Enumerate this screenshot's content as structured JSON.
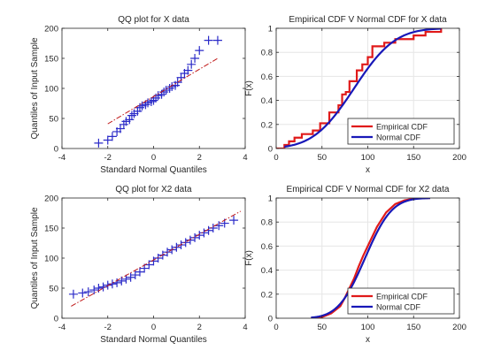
{
  "colors": {
    "marker": "#2b2bc8",
    "ref_line": "#c01818",
    "empirical": "#e01a1a",
    "normal": "#1818b8",
    "axis": "#262626",
    "grid": "#e6e6e6"
  },
  "chart_data": [
    {
      "type": "scatter",
      "title": "QQ plot for X data",
      "xlabel": "Standard Normal Quantiles",
      "ylabel": "Quantiles of Input Sample",
      "xlim": [
        -4,
        4
      ],
      "ylim": [
        0,
        200
      ],
      "xticks": [
        -4,
        -2,
        0,
        2,
        4
      ],
      "yticks": [
        0,
        50,
        100,
        150,
        200
      ],
      "grid": false,
      "series": [
        {
          "kind": "markers",
          "marker": "+",
          "x": [
            -2.4,
            -2.0,
            -1.8,
            -1.6,
            -1.45,
            -1.3,
            -1.2,
            -1.05,
            -0.95,
            -0.85,
            -0.7,
            -0.6,
            -0.5,
            -0.35,
            -0.25,
            -0.1,
            0.0,
            0.1,
            0.2,
            0.35,
            0.45,
            0.55,
            0.7,
            0.8,
            0.95,
            1.05,
            1.2,
            1.35,
            1.5,
            1.65,
            1.8,
            2.0,
            2.4,
            2.8
          ],
          "values": [
            9,
            14,
            20,
            28,
            33,
            40,
            45,
            48,
            55,
            58,
            62,
            68,
            71,
            73,
            76,
            78,
            80,
            84,
            88,
            90,
            94,
            97,
            100,
            103,
            105,
            110,
            118,
            125,
            130,
            140,
            150,
            163,
            180,
            180
          ]
        },
        {
          "kind": "reference-line",
          "x": [
            -2.0,
            2.8
          ],
          "values": [
            41,
            150
          ]
        }
      ]
    },
    {
      "type": "line",
      "title": "Empirical CDF V Normal CDF for X data",
      "xlabel": "x",
      "ylabel": "F(x)",
      "xlim": [
        0,
        200
      ],
      "ylim": [
        0,
        1
      ],
      "xticks": [
        0,
        50,
        100,
        150,
        200
      ],
      "yticks": [
        0,
        0.2,
        0.4,
        0.6,
        0.8,
        1
      ],
      "grid": true,
      "legend_position": "bottom-right",
      "legend": [
        "Empirical CDF",
        "Normal CDF"
      ],
      "series": [
        {
          "name": "Empirical CDF",
          "kind": "stairs",
          "x": [
            9,
            14,
            20,
            28,
            40,
            48,
            58,
            68,
            72,
            76,
            80,
            88,
            94,
            100,
            105,
            118,
            130,
            150,
            163,
            180
          ],
          "values": [
            0.03,
            0.06,
            0.09,
            0.12,
            0.15,
            0.21,
            0.3,
            0.36,
            0.45,
            0.47,
            0.56,
            0.65,
            0.7,
            0.76,
            0.85,
            0.88,
            0.91,
            0.94,
            0.97,
            1.0
          ]
        },
        {
          "name": "Normal CDF",
          "kind": "normal-cdf",
          "mean": 85,
          "std": 35,
          "x_range": [
            9,
            180
          ]
        }
      ]
    },
    {
      "type": "scatter",
      "title": "QQ plot for X2 data",
      "xlabel": "Standard Normal Quantiles",
      "ylabel": "Quantiles of Input Sample",
      "xlim": [
        -4,
        4
      ],
      "ylim": [
        0,
        200
      ],
      "xticks": [
        -4,
        -2,
        0,
        2,
        4
      ],
      "yticks": [
        0,
        50,
        100,
        150,
        200
      ],
      "grid": false,
      "series": [
        {
          "kind": "markers",
          "marker": "+",
          "x": [
            -3.5,
            -3.1,
            -2.85,
            -2.6,
            -2.4,
            -2.2,
            -2.0,
            -1.8,
            -1.6,
            -1.4,
            -1.2,
            -1.0,
            -0.8,
            -0.6,
            -0.4,
            -0.2,
            0.0,
            0.2,
            0.4,
            0.6,
            0.8,
            1.0,
            1.2,
            1.4,
            1.6,
            1.8,
            2.0,
            2.2,
            2.4,
            2.6,
            2.85,
            3.1,
            3.5
          ],
          "values": [
            40,
            42,
            44,
            47,
            50,
            52,
            55,
            57,
            59,
            62,
            65,
            68,
            72,
            77,
            83,
            89,
            95,
            100,
            105,
            110,
            114,
            118,
            122,
            126,
            130,
            134,
            138,
            142,
            146,
            150,
            154,
            158,
            163
          ]
        },
        {
          "kind": "reference-line",
          "x": [
            -3.6,
            3.8
          ],
          "values": [
            20,
            178
          ]
        }
      ]
    },
    {
      "type": "line",
      "title": "Empirical CDF V Normal CDF for X2 data",
      "xlabel": "x",
      "ylabel": "F(x)",
      "xlim": [
        0,
        200
      ],
      "ylim": [
        0,
        1
      ],
      "xticks": [
        0,
        50,
        100,
        150,
        200
      ],
      "yticks": [
        0,
        0.2,
        0.4,
        0.6,
        0.8,
        1
      ],
      "grid": true,
      "legend_position": "bottom-right",
      "legend": [
        "Empirical CDF",
        "Normal CDF"
      ],
      "series": [
        {
          "name": "Empirical CDF",
          "kind": "curve",
          "x": [
            38,
            50,
            60,
            70,
            75,
            80,
            85,
            90,
            95,
            100,
            105,
            110,
            115,
            120,
            130,
            140,
            150,
            160,
            168
          ],
          "values": [
            0.0,
            0.01,
            0.04,
            0.1,
            0.17,
            0.25,
            0.33,
            0.43,
            0.52,
            0.6,
            0.68,
            0.76,
            0.82,
            0.88,
            0.95,
            0.98,
            0.995,
            1.0,
            1.0
          ]
        },
        {
          "name": "Normal CDF",
          "kind": "normal-cdf",
          "mean": 97,
          "std": 23,
          "x_range": [
            38,
            168
          ]
        }
      ]
    }
  ]
}
